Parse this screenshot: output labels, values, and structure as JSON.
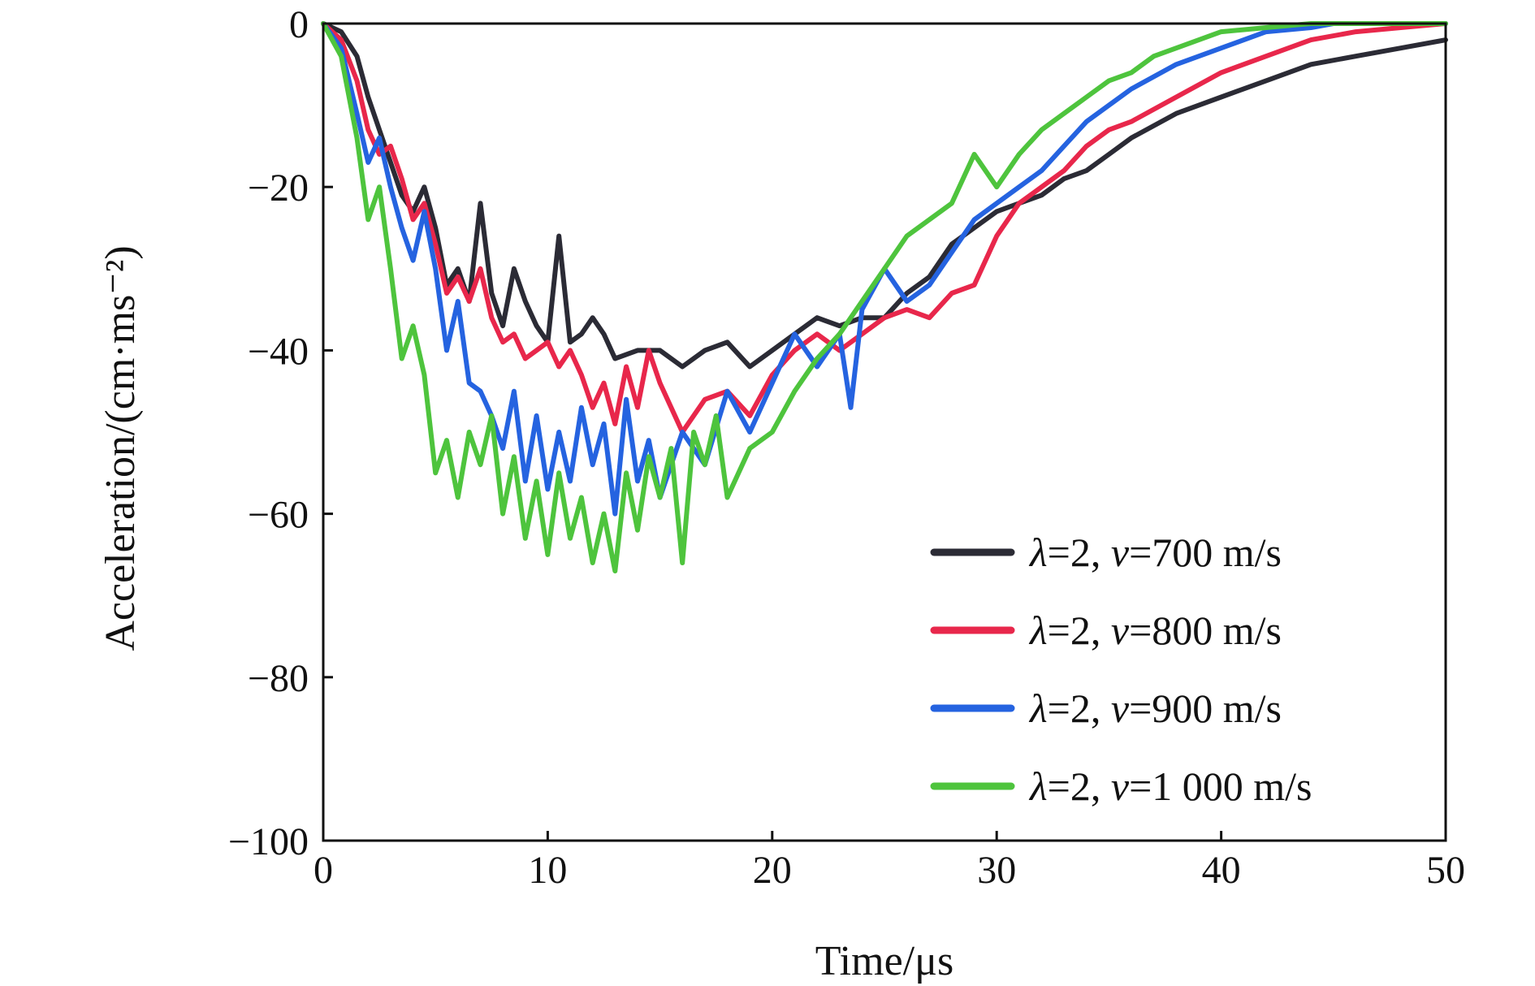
{
  "chart_data": {
    "type": "line",
    "xlabel": "Time/μs",
    "ylabel": "Acceleration/(cm·ms⁻²)",
    "xlim": [
      0,
      50
    ],
    "ylim": [
      -100,
      0
    ],
    "x_ticks": [
      0,
      10,
      20,
      30,
      40,
      50
    ],
    "y_ticks": [
      0,
      -20,
      -40,
      -60,
      -80,
      -100
    ],
    "x_tick_labels": [
      "0",
      "10",
      "20",
      "30",
      "40",
      "50"
    ],
    "y_tick_labels": [
      "0",
      "−20",
      "−40",
      "−60",
      "−80",
      "−100"
    ],
    "grid": false,
    "legend_position": "bottom-right",
    "series": [
      {
        "name": "λ=2, v=700 m/s",
        "color": "#2b2b35",
        "x": [
          0,
          0.8,
          1.5,
          2,
          2.5,
          3,
          3.5,
          4,
          4.5,
          5,
          5.5,
          6,
          6.5,
          7,
          7.5,
          8,
          8.5,
          9,
          9.5,
          10,
          10.5,
          11,
          11.5,
          12,
          12.5,
          13,
          14,
          15,
          16,
          17,
          18,
          19,
          20,
          21,
          22,
          23,
          24,
          25,
          26,
          27,
          28,
          29,
          30,
          31,
          32,
          33,
          34,
          35,
          36,
          38,
          40,
          42,
          44,
          46,
          48,
          50
        ],
        "y": [
          0,
          -1,
          -4,
          -9,
          -13,
          -17,
          -21,
          -23,
          -20,
          -25,
          -32,
          -30,
          -34,
          -22,
          -33,
          -37,
          -30,
          -34,
          -37,
          -39,
          -26,
          -39,
          -38,
          -36,
          -38,
          -41,
          -40,
          -40,
          -42,
          -40,
          -39,
          -42,
          -40,
          -38,
          -36,
          -37,
          -36,
          -36,
          -33,
          -31,
          -27,
          -25,
          -23,
          -22,
          -21,
          -19,
          -18,
          -16,
          -14,
          -11,
          -9,
          -7,
          -5,
          -4,
          -3,
          -2
        ]
      },
      {
        "name": "λ=2, v=800 m/s",
        "color": "#e8274b",
        "x": [
          0,
          0.8,
          1.5,
          2,
          2.5,
          3,
          3.5,
          4,
          4.5,
          5,
          5.5,
          6,
          6.5,
          7,
          7.5,
          8,
          8.5,
          9,
          9.5,
          10,
          10.5,
          11,
          11.5,
          12,
          12.5,
          13,
          13.5,
          14,
          14.5,
          15,
          16,
          17,
          18,
          19,
          20,
          21,
          22,
          23,
          24,
          25,
          26,
          27,
          28,
          29,
          30,
          31,
          32,
          33,
          34,
          35,
          36,
          38,
          40,
          42,
          44,
          46,
          48,
          50
        ],
        "y": [
          0,
          -2,
          -7,
          -13,
          -16,
          -15,
          -19,
          -24,
          -22,
          -27,
          -33,
          -31,
          -34,
          -30,
          -36,
          -39,
          -38,
          -41,
          -40,
          -39,
          -42,
          -40,
          -43,
          -47,
          -44,
          -49,
          -42,
          -47,
          -40,
          -44,
          -50,
          -46,
          -45,
          -48,
          -43,
          -40,
          -38,
          -40,
          -38,
          -36,
          -35,
          -36,
          -33,
          -32,
          -26,
          -22,
          -20,
          -18,
          -15,
          -13,
          -12,
          -9,
          -6,
          -4,
          -2,
          -1,
          -0.5,
          0
        ]
      },
      {
        "name": "λ=2, v=900 m/s",
        "color": "#2563e0",
        "x": [
          0,
          0.8,
          1.5,
          2,
          2.5,
          3,
          3.5,
          4,
          4.5,
          5,
          5.5,
          6,
          6.5,
          7,
          7.5,
          8,
          8.5,
          9,
          9.5,
          10,
          10.5,
          11,
          11.5,
          12,
          12.5,
          13,
          13.5,
          14,
          14.5,
          15,
          16,
          17,
          18,
          19,
          20,
          21,
          22,
          23,
          23.5,
          24,
          25,
          26,
          27,
          28,
          29,
          30,
          31,
          32,
          33,
          34,
          35,
          36,
          38,
          40,
          42,
          44,
          45,
          46,
          48,
          50
        ],
        "y": [
          0,
          -3,
          -11,
          -17,
          -14,
          -20,
          -25,
          -29,
          -23,
          -30,
          -40,
          -34,
          -44,
          -45,
          -48,
          -52,
          -45,
          -56,
          -48,
          -57,
          -50,
          -56,
          -47,
          -54,
          -49,
          -60,
          -46,
          -56,
          -51,
          -58,
          -50,
          -54,
          -45,
          -50,
          -44,
          -38,
          -42,
          -38,
          -47,
          -35,
          -30,
          -34,
          -32,
          -28,
          -24,
          -22,
          -20,
          -18,
          -15,
          -12,
          -10,
          -8,
          -5,
          -3,
          -1,
          -0.5,
          0,
          0,
          0,
          0
        ]
      },
      {
        "name": "λ=2, v=1 000 m/s",
        "color": "#4ec43d",
        "x": [
          0,
          0.8,
          1.5,
          2,
          2.5,
          3,
          3.5,
          4,
          4.5,
          5,
          5.5,
          6,
          6.5,
          7,
          7.5,
          8,
          8.5,
          9,
          9.5,
          10,
          10.5,
          11,
          11.5,
          12,
          12.5,
          13,
          13.5,
          14,
          14.5,
          15,
          15.5,
          16,
          16.5,
          17,
          17.5,
          18,
          19,
          20,
          21,
          22,
          23,
          24,
          25,
          26,
          27,
          28,
          29,
          30,
          31,
          32,
          33,
          34,
          35,
          36,
          37,
          38,
          40,
          42,
          44,
          46,
          48,
          50
        ],
        "y": [
          0,
          -4,
          -14,
          -24,
          -20,
          -30,
          -41,
          -37,
          -43,
          -55,
          -51,
          -58,
          -50,
          -54,
          -48,
          -60,
          -53,
          -63,
          -56,
          -65,
          -55,
          -63,
          -58,
          -66,
          -60,
          -67,
          -55,
          -62,
          -53,
          -58,
          -52,
          -66,
          -50,
          -54,
          -48,
          -58,
          -52,
          -50,
          -45,
          -41,
          -38,
          -34,
          -30,
          -26,
          -24,
          -22,
          -16,
          -20,
          -16,
          -13,
          -11,
          -9,
          -7,
          -6,
          -4,
          -3,
          -1,
          -0.5,
          0,
          0,
          0,
          0
        ]
      }
    ]
  }
}
